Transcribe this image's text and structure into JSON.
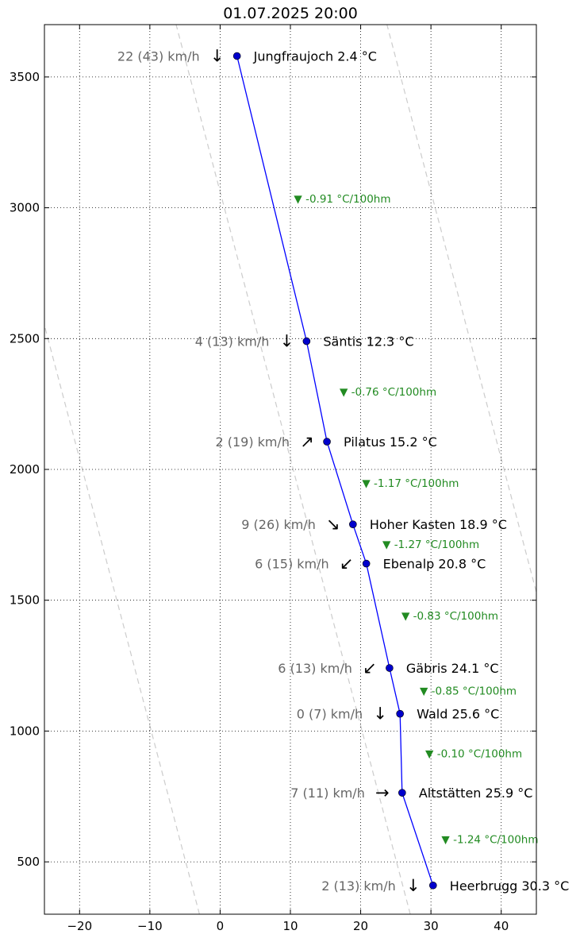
{
  "chart_data": {
    "type": "line",
    "title": "01.07.2025 20:00",
    "xlabel": "",
    "ylabel": "",
    "xlim": [
      -25,
      45
    ],
    "ylim": [
      300,
      3700
    ],
    "xticks": [
      -20,
      -10,
      0,
      10,
      20,
      30,
      40
    ],
    "xtick_labels": [
      "−20",
      "−10",
      "0",
      "10",
      "20",
      "30",
      "40"
    ],
    "yticks": [
      500,
      1000,
      1500,
      2000,
      2500,
      3000,
      3500
    ],
    "yticks_labels": [
      "500",
      "1000",
      "1500",
      "2000",
      "2500",
      "3000",
      "3500"
    ],
    "grid": true,
    "line_color": "#0000ff",
    "marker_color": "#0000cc",
    "lapse_color": "#228b22",
    "wind_color": "#666666",
    "dry_adiabat_color": "#cccccc",
    "dry_adiabats": [
      -150,
      -120,
      -90,
      -60,
      -30,
      0,
      30,
      60,
      90,
      120,
      150
    ],
    "stations": [
      {
        "name": "Heerbrugg",
        "temp": 30.3,
        "alt": 410,
        "label": "Heerbrugg 30.3 °C",
        "wind": "2 (13) km/h",
        "arrow": "↓"
      },
      {
        "name": "Altstätten",
        "temp": 25.9,
        "alt": 764,
        "label": "Altstätten 25.9 °C",
        "wind": "7 (11) km/h",
        "arrow": "→"
      },
      {
        "name": "Wald",
        "temp": 25.6,
        "alt": 1066,
        "label": "Wald 25.6 °C",
        "wind": "0 (7) km/h",
        "arrow": "↓"
      },
      {
        "name": "Gäbris",
        "temp": 24.1,
        "alt": 1241,
        "label": "Gäbris 24.1 °C",
        "wind": "6 (13) km/h",
        "arrow": "↙"
      },
      {
        "name": "Ebenalp",
        "temp": 20.8,
        "alt": 1640,
        "label": "Ebenalp 20.8 °C",
        "wind": "6 (15) km/h",
        "arrow": "↙"
      },
      {
        "name": "Hoher Kasten",
        "temp": 18.9,
        "alt": 1790,
        "label": "Hoher Kasten 18.9 °C",
        "wind": "9 (26) km/h",
        "arrow": "↘"
      },
      {
        "name": "Pilatus",
        "temp": 15.2,
        "alt": 2106,
        "label": "Pilatus 15.2 °C",
        "wind": "2 (19) km/h",
        "arrow": "↗"
      },
      {
        "name": "Säntis",
        "temp": 12.3,
        "alt": 2490,
        "label": "Säntis 12.3 °C",
        "wind": "4 (13) km/h",
        "arrow": "↓"
      },
      {
        "name": "Jungfraujoch",
        "temp": 2.4,
        "alt": 3580,
        "label": "Jungfraujoch 2.4 °C",
        "wind": "22 (43) km/h",
        "arrow": "↓"
      }
    ],
    "lapse_rates": [
      {
        "label": "▼ -1.24 °C/100hm",
        "x": 31.5,
        "y": 587
      },
      {
        "label": "▼ -0.10 °C/100hm",
        "x": 29.2,
        "y": 915
      },
      {
        "label": "▼ -0.85 °C/100hm",
        "x": 28.4,
        "y": 1154
      },
      {
        "label": "▼ -0.83 °C/100hm",
        "x": 25.8,
        "y": 1441
      },
      {
        "label": "▼ -1.27 °C/100hm",
        "x": 23.1,
        "y": 1715
      },
      {
        "label": "▼ -1.17 °C/100hm",
        "x": 20.2,
        "y": 1948
      },
      {
        "label": "▼ -0.76 °C/100hm",
        "x": 17.0,
        "y": 2298
      },
      {
        "label": "▼ -0.91 °C/100hm",
        "x": 10.5,
        "y": 3035
      }
    ]
  }
}
